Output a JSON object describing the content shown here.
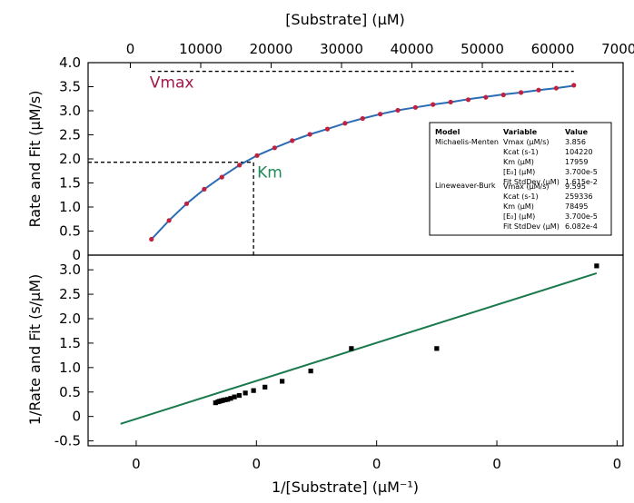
{
  "chart_data": [
    {
      "type": "scatter",
      "title": "",
      "xlabel": "[Substrate] (μM)",
      "ylabel": "Rate and Fit (μM/s)",
      "xlim": [
        -6000,
        70000
      ],
      "ylim": [
        0,
        4.0
      ],
      "x_ticks": [
        "0",
        "10000",
        "20000",
        "30000",
        "40000",
        "50000",
        "60000",
        "70000"
      ],
      "y_ticks": [
        "0",
        "0.5",
        "1.0",
        "1.5",
        "2.0",
        "2.5",
        "3.0",
        "3.5",
        "4.0"
      ],
      "series": [
        {
          "style": "points",
          "color": "#c0213e",
          "x": [
            3000,
            5500,
            8000,
            10500,
            13000,
            15500,
            18000,
            20500,
            23000,
            25500,
            28000,
            30500,
            33000,
            35500,
            38000,
            40500,
            43000,
            45500,
            48000,
            50500,
            53000,
            55500,
            58000,
            60500,
            63000
          ],
          "y": [
            0.33,
            0.72,
            1.07,
            1.37,
            1.62,
            1.87,
            2.07,
            2.23,
            2.38,
            2.51,
            2.62,
            2.74,
            2.84,
            2.93,
            3.01,
            3.07,
            3.13,
            3.18,
            3.23,
            3.28,
            3.33,
            3.38,
            3.43,
            3.47,
            3.53
          ]
        },
        {
          "style": "line",
          "color": "#2a6db5",
          "x": [
            3000,
            5500,
            8000,
            10500,
            13000,
            15500,
            18000,
            20500,
            23000,
            25500,
            28000,
            30500,
            33000,
            35500,
            38000,
            40500,
            43000,
            45500,
            48000,
            50500,
            53000,
            55500,
            58000,
            60500,
            63000
          ],
          "y": [
            0.33,
            0.72,
            1.07,
            1.37,
            1.63,
            1.87,
            2.07,
            2.23,
            2.38,
            2.51,
            2.62,
            2.74,
            2.84,
            2.93,
            3.01,
            3.07,
            3.13,
            3.18,
            3.24,
            3.29,
            3.34,
            3.38,
            3.43,
            3.47,
            3.52
          ]
        }
      ],
      "annotations": [
        {
          "text": "Vmax",
          "color": "#a3174a",
          "line": {
            "x": [
              3000,
              63000
            ],
            "y": [
              3.82,
              3.82
            ]
          }
        },
        {
          "text": "Km",
          "color": "#1f8a5a",
          "line_h": {
            "x": [
              -6000,
              17500
            ],
            "y": [
              1.93,
              1.93
            ]
          },
          "line_v": {
            "x": [
              17500,
              17500
            ],
            "y": [
              0,
              1.93
            ]
          }
        }
      ],
      "legend": {
        "placement": "right",
        "headers": [
          "Model",
          "Variable",
          "Value"
        ],
        "groups": [
          {
            "model": "Michaelis-Menten",
            "rows": [
              {
                "variable": "Vmax (μM/s)",
                "value": "3.856"
              },
              {
                "variable": "Kcat (s-1)",
                "value": "104220"
              },
              {
                "variable": "Km (μM)",
                "value": "17959"
              },
              {
                "variable": "[E₀] (μM)",
                "value": "3.700e-5"
              },
              {
                "variable": "Fit StdDev (μM)",
                "value": "1.615e-2"
              }
            ]
          },
          {
            "model": "Lineweaver-Burk",
            "rows": [
              {
                "variable": "Vmax (μM/s)",
                "value": "9.595"
              },
              {
                "variable": "Kcat (s-1)",
                "value": "259336"
              },
              {
                "variable": "Km (μM)",
                "value": "78495"
              },
              {
                "variable": "[E₀] (μM)",
                "value": "3.700e-5"
              },
              {
                "variable": "Fit StdDev (μM)",
                "value": "6.082e-4"
              }
            ]
          }
        ]
      }
    },
    {
      "type": "scatter",
      "title": "",
      "xlabel": "1/[Substrate] (μM⁻¹)",
      "ylabel": "1/Rate and Fit (s/μM)",
      "xlim": [
        -9e-05,
        0.000355
      ],
      "ylim": [
        -0.6,
        3.3
      ],
      "x_ticks": [
        "0",
        "0",
        "0",
        "0",
        "0"
      ],
      "y_ticks": [
        "-0.5",
        "0",
        "0.5",
        "1.0",
        "1.5",
        "2.0",
        "2.5",
        "3.0"
      ],
      "series": [
        {
          "style": "points",
          "color": "#000000",
          "x": [
            1.6e-05,
            1.8e-05,
            1.93e-05,
            2.07e-05,
            2.22e-05,
            2.4e-05,
            2.61e-05,
            2.86e-05,
            3.17e-05,
            3.57e-05,
            4.08e-05,
            4.76e-05,
            5.71e-05,
            7.14e-05,
            9.52e-05,
            0.000129,
            0.0002,
            0.000333
          ],
          "y": [
            0.28,
            0.3,
            0.31,
            0.32,
            0.33,
            0.34,
            0.35,
            0.37,
            0.4,
            0.43,
            0.48,
            0.53,
            0.6,
            0.72,
            0.93,
            1.39,
            1.39,
            3.08
          ]
        },
        {
          "style": "line",
          "color": "#1a7a4e",
          "x": [
            -6.3e-05,
            0.000333
          ],
          "y": [
            -0.15,
            2.93
          ]
        }
      ]
    }
  ]
}
